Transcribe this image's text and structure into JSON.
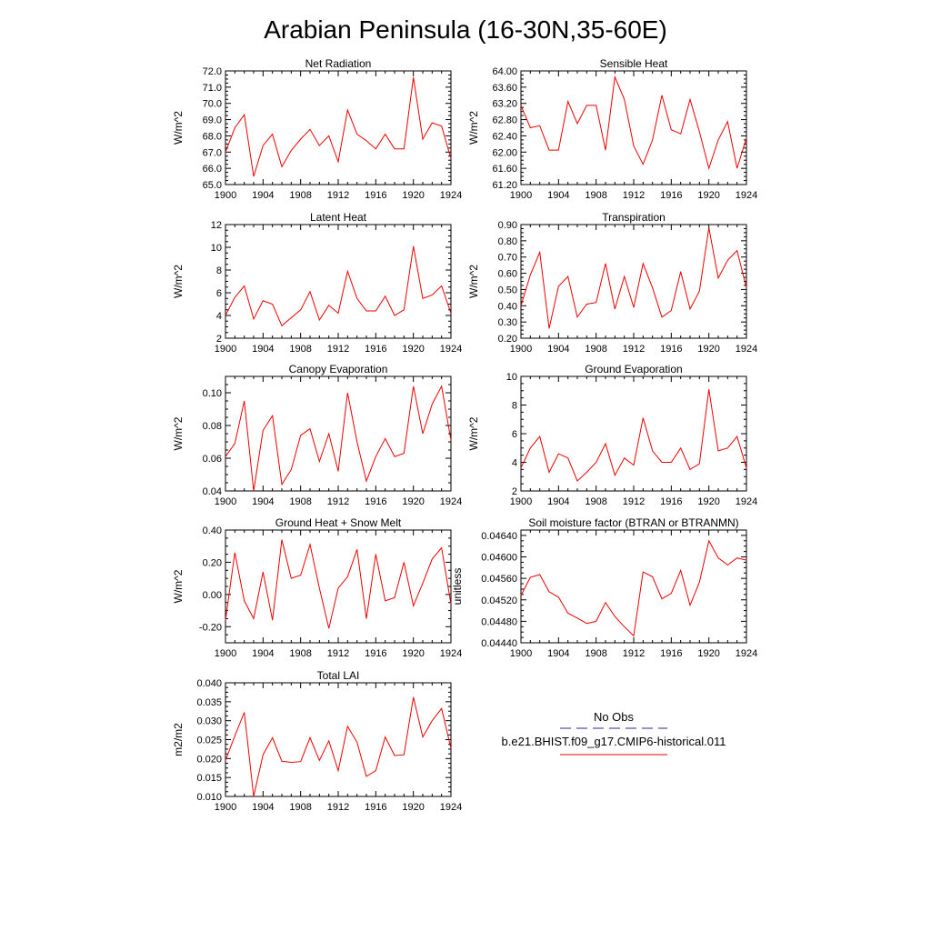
{
  "figure": {
    "title": "Arabian Peninsula (16-30N,35-60E)",
    "line_color": "#ee0000",
    "obs_color": "#2b2b8c"
  },
  "legend": {
    "obs_label": "No Obs",
    "model_label": "b.e21.BHIST.f09_g17.CMIP6-historical.011"
  },
  "chart_data": [
    {
      "type": "line",
      "title": "Net Radiation",
      "ylabel": "W/m^2",
      "xlim": [
        1900,
        1924
      ],
      "ylim": [
        65.0,
        72.0
      ],
      "x_ticks": [
        1900,
        1904,
        1908,
        1912,
        1916,
        1920,
        1924
      ],
      "y_ticks": [
        "65.0",
        "66.0",
        "67.0",
        "68.0",
        "69.0",
        "70.0",
        "71.0",
        "72.0"
      ],
      "x": [
        1900,
        1901,
        1902,
        1903,
        1904,
        1905,
        1906,
        1907,
        1908,
        1909,
        1910,
        1911,
        1912,
        1913,
        1914,
        1915,
        1916,
        1917,
        1918,
        1919,
        1920,
        1921,
        1922,
        1923,
        1924
      ],
      "values": [
        67.0,
        68.5,
        69.3,
        65.5,
        67.4,
        68.1,
        66.1,
        67.1,
        67.8,
        68.4,
        67.4,
        68.0,
        66.4,
        69.6,
        68.1,
        67.7,
        67.2,
        68.1,
        67.2,
        67.2,
        71.6,
        67.8,
        68.8,
        68.6,
        66.6
      ]
    },
    {
      "type": "line",
      "title": "Sensible Heat",
      "ylabel": "W/m^2",
      "xlim": [
        1900,
        1924
      ],
      "ylim": [
        61.2,
        64.0
      ],
      "x_ticks": [
        1900,
        1904,
        1908,
        1912,
        1916,
        1920,
        1924
      ],
      "y_ticks": [
        "61.20",
        "61.60",
        "62.00",
        "62.40",
        "62.80",
        "63.20",
        "63.60",
        "64.00"
      ],
      "x": [
        1900,
        1901,
        1902,
        1903,
        1904,
        1905,
        1906,
        1907,
        1908,
        1909,
        1910,
        1911,
        1912,
        1913,
        1914,
        1915,
        1916,
        1917,
        1918,
        1919,
        1920,
        1921,
        1922,
        1923,
        1924
      ],
      "values": [
        63.15,
        62.6,
        62.65,
        62.05,
        62.05,
        63.25,
        62.7,
        63.15,
        63.15,
        62.05,
        63.85,
        63.3,
        62.15,
        61.7,
        62.3,
        63.4,
        62.55,
        62.45,
        63.3,
        62.5,
        61.6,
        62.3,
        62.75,
        61.6,
        62.35
      ]
    },
    {
      "type": "line",
      "title": "Latent Heat",
      "ylabel": "W/m^2",
      "xlim": [
        1900,
        1924
      ],
      "ylim": [
        2,
        12
      ],
      "x_ticks": [
        1900,
        1904,
        1908,
        1912,
        1916,
        1920,
        1924
      ],
      "y_ticks": [
        "2",
        "4",
        "6",
        "8",
        "10",
        "12"
      ],
      "x": [
        1900,
        1901,
        1902,
        1903,
        1904,
        1905,
        1906,
        1907,
        1908,
        1909,
        1910,
        1911,
        1912,
        1913,
        1914,
        1915,
        1916,
        1917,
        1918,
        1919,
        1920,
        1921,
        1922,
        1923,
        1924
      ],
      "values": [
        4.0,
        5.6,
        6.6,
        3.7,
        5.3,
        5.0,
        3.1,
        3.8,
        4.5,
        6.1,
        3.6,
        4.9,
        4.2,
        7.9,
        5.5,
        4.4,
        4.4,
        5.7,
        4.0,
        4.5,
        10.1,
        5.5,
        5.8,
        6.6,
        4.2
      ]
    },
    {
      "type": "line",
      "title": "Transpiration",
      "ylabel": "W/m^2",
      "xlim": [
        1900,
        1924
      ],
      "ylim": [
        0.2,
        0.9
      ],
      "x_ticks": [
        1900,
        1904,
        1908,
        1912,
        1916,
        1920,
        1924
      ],
      "y_ticks": [
        "0.20",
        "0.30",
        "0.40",
        "0.50",
        "0.60",
        "0.70",
        "0.80",
        "0.90"
      ],
      "x": [
        1900,
        1901,
        1902,
        1903,
        1904,
        1905,
        1906,
        1907,
        1908,
        1909,
        1910,
        1911,
        1912,
        1913,
        1914,
        1915,
        1916,
        1917,
        1918,
        1919,
        1920,
        1921,
        1922,
        1923,
        1924
      ],
      "values": [
        0.4,
        0.59,
        0.73,
        0.26,
        0.52,
        0.58,
        0.33,
        0.41,
        0.42,
        0.66,
        0.38,
        0.58,
        0.39,
        0.66,
        0.51,
        0.33,
        0.37,
        0.61,
        0.38,
        0.49,
        0.88,
        0.57,
        0.68,
        0.74,
        0.51
      ]
    },
    {
      "type": "line",
      "title": "Canopy Evaporation",
      "ylabel": "W/m^2",
      "xlim": [
        1900,
        1924
      ],
      "ylim": [
        0.04,
        0.11
      ],
      "x_ticks": [
        1900,
        1904,
        1908,
        1912,
        1916,
        1920,
        1924
      ],
      "y_ticks": [
        "0.04",
        "0.06",
        "0.08",
        "0.10"
      ],
      "x": [
        1900,
        1901,
        1902,
        1903,
        1904,
        1905,
        1906,
        1907,
        1908,
        1909,
        1910,
        1911,
        1912,
        1913,
        1914,
        1915,
        1916,
        1917,
        1918,
        1919,
        1920,
        1921,
        1922,
        1923,
        1924
      ],
      "values": [
        0.061,
        0.069,
        0.095,
        0.04,
        0.077,
        0.086,
        0.044,
        0.053,
        0.074,
        0.078,
        0.058,
        0.075,
        0.052,
        0.1,
        0.07,
        0.046,
        0.061,
        0.072,
        0.061,
        0.063,
        0.104,
        0.075,
        0.093,
        0.104,
        0.071
      ]
    },
    {
      "type": "line",
      "title": "Ground Evaporation",
      "ylabel": "W/m^2",
      "xlim": [
        1900,
        1924
      ],
      "ylim": [
        2,
        10
      ],
      "x_ticks": [
        1900,
        1904,
        1908,
        1912,
        1916,
        1920,
        1924
      ],
      "y_ticks": [
        "2",
        "4",
        "6",
        "8",
        "10"
      ],
      "x": [
        1900,
        1901,
        1902,
        1903,
        1904,
        1905,
        1906,
        1907,
        1908,
        1909,
        1910,
        1911,
        1912,
        1913,
        1914,
        1915,
        1916,
        1917,
        1918,
        1919,
        1920,
        1921,
        1922,
        1923,
        1924
      ],
      "values": [
        3.6,
        5.0,
        5.8,
        3.3,
        4.6,
        4.3,
        2.7,
        3.3,
        4.0,
        5.3,
        3.1,
        4.3,
        3.8,
        7.1,
        4.8,
        4.0,
        4.0,
        5.0,
        3.5,
        3.9,
        9.1,
        4.8,
        5.0,
        5.8,
        3.6
      ]
    },
    {
      "type": "line",
      "title": "Ground Heat + Snow Melt",
      "ylabel": "W/m^2",
      "xlim": [
        1900,
        1924
      ],
      "ylim": [
        -0.3,
        0.4
      ],
      "x_ticks": [
        1900,
        1904,
        1908,
        1912,
        1916,
        1920,
        1924
      ],
      "y_ticks": [
        "-0.20",
        "0.00",
        "0.20",
        "0.40"
      ],
      "x": [
        1900,
        1901,
        1902,
        1903,
        1904,
        1905,
        1906,
        1907,
        1908,
        1909,
        1910,
        1911,
        1912,
        1913,
        1914,
        1915,
        1916,
        1917,
        1918,
        1919,
        1920,
        1921,
        1922,
        1923,
        1924
      ],
      "values": [
        -0.16,
        0.26,
        -0.04,
        -0.15,
        0.14,
        -0.16,
        0.34,
        0.1,
        0.12,
        0.31,
        0.04,
        -0.21,
        0.04,
        0.11,
        0.28,
        -0.15,
        0.25,
        -0.04,
        -0.02,
        0.2,
        -0.07,
        0.07,
        0.22,
        0.29,
        -0.06
      ]
    },
    {
      "type": "line",
      "title": "Soil moisture factor (BTRAN or BTRANMN)",
      "ylabel": "unitless",
      "xlim": [
        1900,
        1924
      ],
      "ylim": [
        0.0444,
        0.0465
      ],
      "x_ticks": [
        1900,
        1904,
        1908,
        1912,
        1916,
        1920,
        1924
      ],
      "y_ticks": [
        "0.04440",
        "0.04480",
        "0.04520",
        "0.04560",
        "0.04600",
        "0.04640"
      ],
      "x": [
        1900,
        1901,
        1902,
        1903,
        1904,
        1905,
        1906,
        1907,
        1908,
        1909,
        1910,
        1911,
        1912,
        1913,
        1914,
        1915,
        1916,
        1917,
        1918,
        1919,
        1920,
        1921,
        1922,
        1923,
        1924
      ],
      "values": [
        0.04528,
        0.04562,
        0.04567,
        0.04535,
        0.04525,
        0.04495,
        0.04486,
        0.04476,
        0.0448,
        0.04515,
        0.04489,
        0.0447,
        0.04453,
        0.04572,
        0.04563,
        0.04522,
        0.04532,
        0.04575,
        0.0451,
        0.04553,
        0.0463,
        0.04598,
        0.04585,
        0.04598,
        0.04594
      ]
    },
    {
      "type": "line",
      "title": "Total LAI",
      "ylabel": "m2/m2",
      "xlim": [
        1900,
        1924
      ],
      "ylim": [
        0.01,
        0.04
      ],
      "x_ticks": [
        1900,
        1904,
        1908,
        1912,
        1916,
        1920,
        1924
      ],
      "y_ticks": [
        "0.010",
        "0.015",
        "0.020",
        "0.025",
        "0.030",
        "0.035",
        "0.040"
      ],
      "x": [
        1900,
        1901,
        1902,
        1903,
        1904,
        1905,
        1906,
        1907,
        1908,
        1909,
        1910,
        1911,
        1912,
        1913,
        1914,
        1915,
        1916,
        1917,
        1918,
        1919,
        1920,
        1921,
        1922,
        1923,
        1924
      ],
      "values": [
        0.0195,
        0.026,
        0.0322,
        0.01,
        0.021,
        0.0255,
        0.0193,
        0.019,
        0.0192,
        0.0255,
        0.0195,
        0.0247,
        0.0168,
        0.0285,
        0.0243,
        0.0153,
        0.0168,
        0.0257,
        0.0208,
        0.021,
        0.0362,
        0.0257,
        0.03,
        0.0332,
        0.0227
      ]
    }
  ]
}
